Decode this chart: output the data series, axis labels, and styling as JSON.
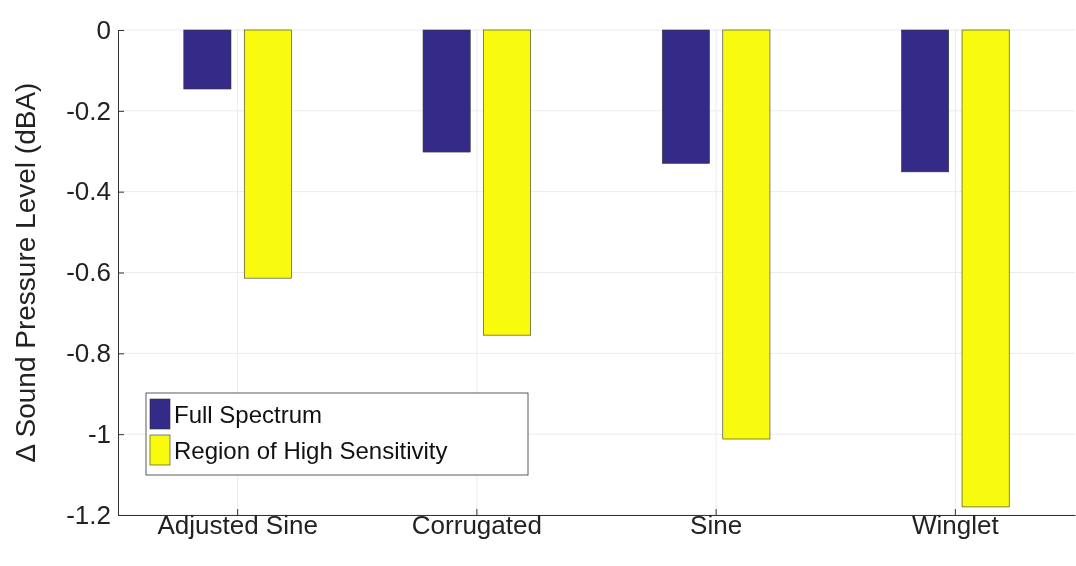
{
  "chart_data": {
    "type": "bar",
    "ylabel": "Δ Sound Pressure Level (dBA)",
    "categories": [
      "Adjusted Sine",
      "Corrugated",
      "Sine",
      "Winglet"
    ],
    "series": [
      {
        "name": "Full Spectrum",
        "color": "#352a87",
        "values": [
          -0.146,
          -0.302,
          -0.33,
          -0.351
        ]
      },
      {
        "name": "Region of High Sensitivity",
        "color": "#f9fb0e",
        "values": [
          -0.614,
          -0.755,
          -1.012,
          -1.18
        ]
      }
    ],
    "ylim": [
      -1.2,
      0
    ],
    "yticks": [
      {
        "value": -1.2,
        "label": "-1.2"
      },
      {
        "value": -1,
        "label": "-1"
      },
      {
        "value": -0.8,
        "label": "-0.8"
      },
      {
        "value": -0.6,
        "label": "-0.6"
      },
      {
        "value": -0.4,
        "label": "-0.4"
      },
      {
        "value": -0.2,
        "label": "-0.2"
      },
      {
        "value": 0,
        "label": "0"
      }
    ],
    "grid": true,
    "legend": "bottom left"
  }
}
